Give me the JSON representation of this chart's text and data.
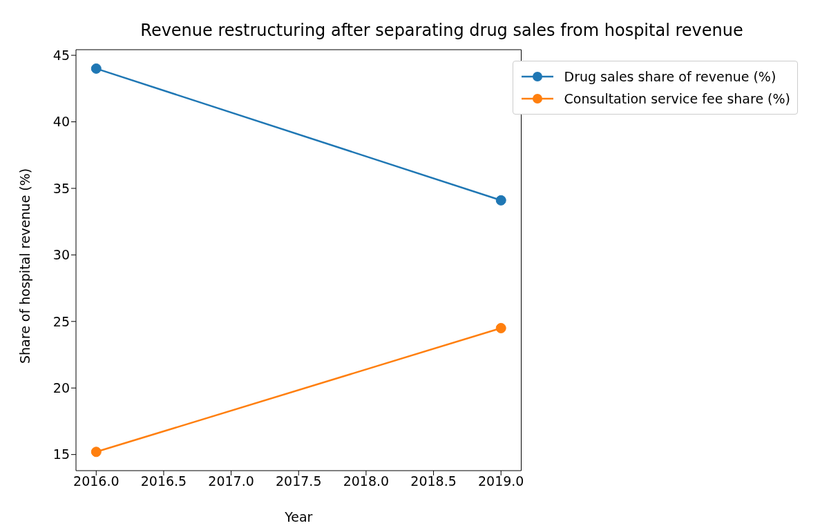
{
  "chart_data": {
    "type": "line",
    "title": "Revenue restructuring after separating drug sales from hospital revenue",
    "xlabel": "Year",
    "ylabel": "Share of hospital revenue (%)",
    "x": [
      2016,
      2019
    ],
    "series": [
      {
        "name": "Drug sales share of revenue (%)",
        "color": "#1f77b4",
        "values": [
          44.0,
          34.1
        ]
      },
      {
        "name": "Consultation service fee share (%)",
        "color": "#ff7f0e",
        "values": [
          15.2,
          24.5
        ]
      }
    ],
    "xlim": [
      2015.85,
      2019.15
    ],
    "xticks": [
      {
        "value": 2016,
        "label": "2016.0"
      },
      {
        "value": 2016.5,
        "label": "2016.5"
      },
      {
        "value": 2017,
        "label": "2017.0"
      },
      {
        "value": 2017.5,
        "label": "2017.5"
      },
      {
        "value": 2018,
        "label": "2018.0"
      },
      {
        "value": 2018.5,
        "label": "2018.5"
      },
      {
        "value": 2019,
        "label": "2019.0"
      }
    ],
    "ylim": [
      13.79,
      45.42
    ],
    "yticks": [
      15,
      20,
      25,
      30,
      35,
      40,
      45
    ],
    "grid": false,
    "legend": "top right",
    "marker": "circle",
    "line_style": "solid"
  }
}
